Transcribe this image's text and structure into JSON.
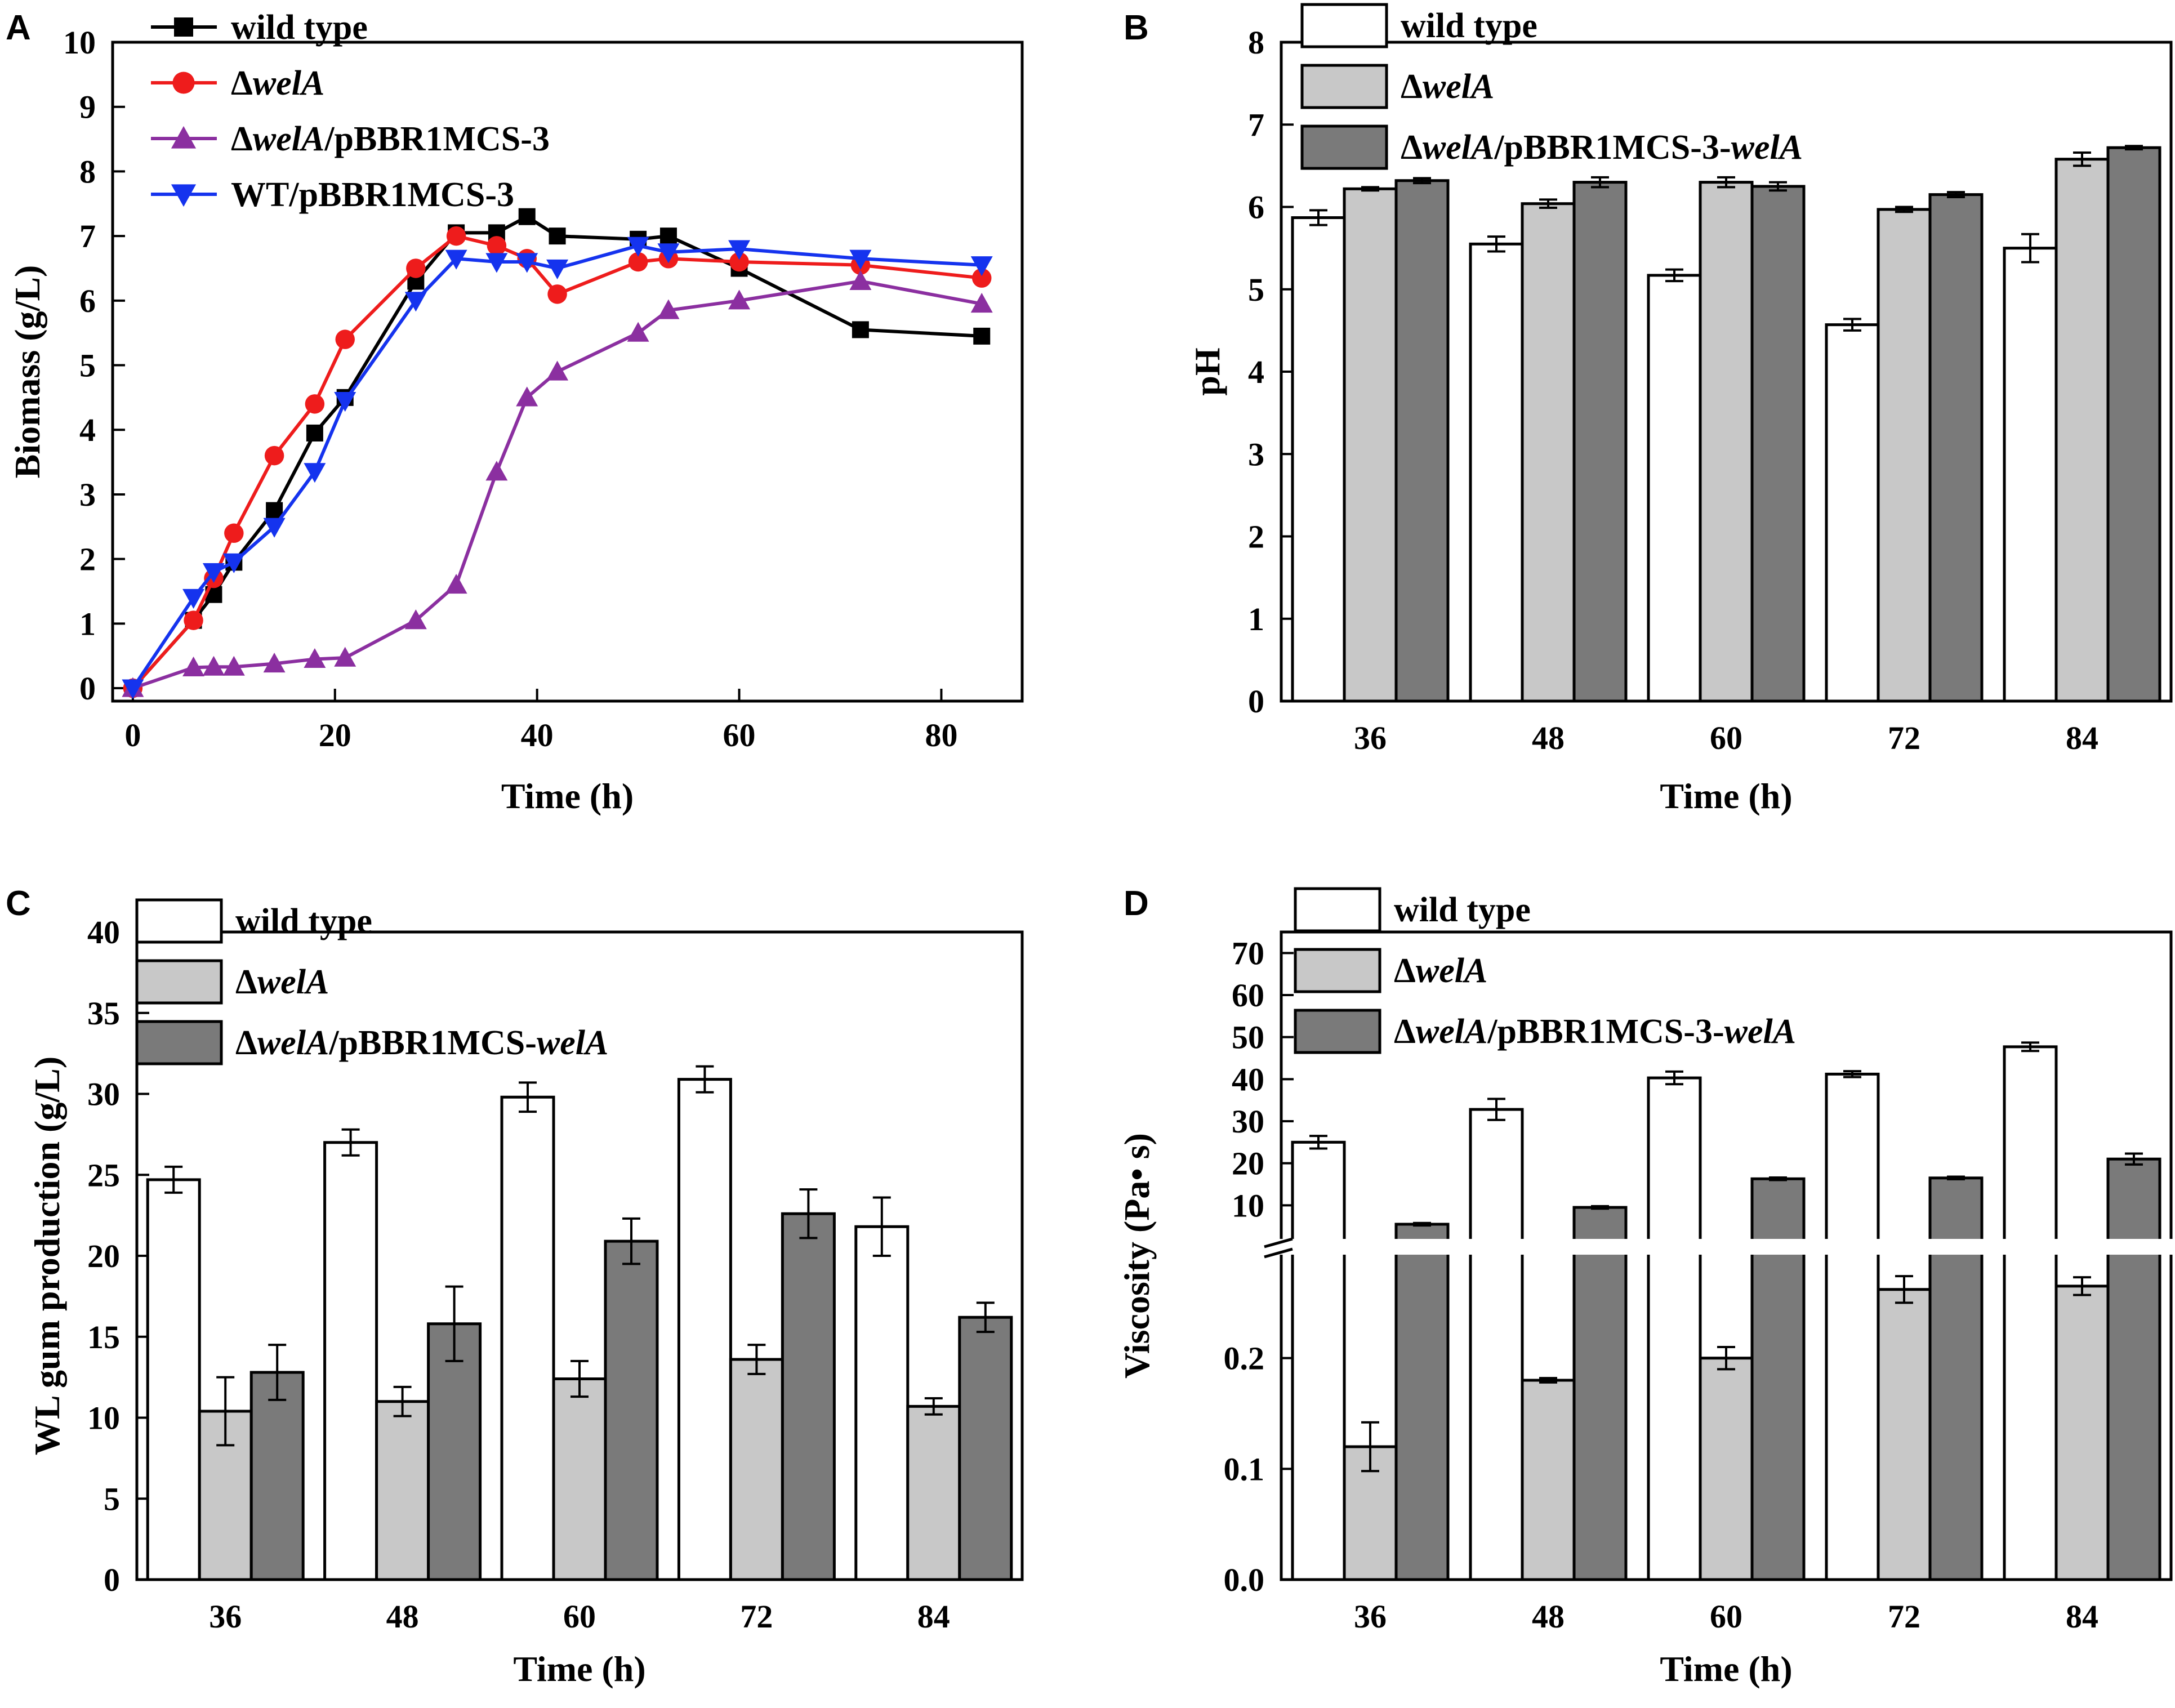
{
  "colors": {
    "wild_type_line": "#000000",
    "delta_line": "#ee1c1c",
    "delta_plasmid_line": "#8b2fa0",
    "wt_plasmid_line": "#1533ee",
    "bar_white": "#ffffff",
    "bar_light": "#c8c8c8",
    "bar_dark": "#7a7a7a"
  },
  "chart_data": [
    {
      "panel": "A",
      "type": "line",
      "xlabel": "Time (h)",
      "ylabel": "Biomass (g/L)",
      "xlim": [
        -2,
        88
      ],
      "ylim": [
        -0.2,
        10
      ],
      "xticks": [
        "0",
        "20",
        "40",
        "60",
        "80"
      ],
      "yticks": [
        "0",
        "1",
        "2",
        "3",
        "4",
        "5",
        "6",
        "7",
        "8",
        "9",
        "10"
      ],
      "legend_position": "top-left",
      "series": [
        {
          "name": "wild type",
          "name_parts": [
            {
              "t": "wild type",
              "i": false
            }
          ],
          "marker": "square",
          "color_key": "wild_type_line",
          "x": [
            0,
            6,
            8,
            10,
            14,
            18,
            21,
            28,
            32,
            36,
            39,
            42,
            50,
            53,
            60,
            72,
            84
          ],
          "y": [
            0,
            1.05,
            1.45,
            1.95,
            2.75,
            3.95,
            4.5,
            6.3,
            7.05,
            7.05,
            7.3,
            7.0,
            6.95,
            7.0,
            6.5,
            5.55,
            5.45
          ]
        },
        {
          "name": "ΔwelA",
          "name_parts": [
            {
              "t": "Δ",
              "i": false
            },
            {
              "t": "welA",
              "i": true
            }
          ],
          "marker": "circle",
          "color_key": "delta_line",
          "x": [
            0,
            6,
            8,
            10,
            14,
            18,
            21,
            28,
            32,
            36,
            39,
            42,
            50,
            53,
            60,
            72,
            84
          ],
          "y": [
            0,
            1.05,
            1.7,
            2.4,
            3.6,
            4.4,
            5.4,
            6.5,
            7.0,
            6.85,
            6.65,
            6.1,
            6.6,
            6.65,
            6.6,
            6.55,
            6.35
          ]
        },
        {
          "name": "ΔwelA/pBBR1MCS-3",
          "name_parts": [
            {
              "t": "Δ",
              "i": false
            },
            {
              "t": "welA",
              "i": true
            },
            {
              "t": "/pBBR1MCS-3",
              "i": false
            }
          ],
          "marker": "triangle-up",
          "color_key": "delta_plasmid_line",
          "x": [
            0,
            6,
            8,
            10,
            14,
            18,
            21,
            28,
            32,
            36,
            39,
            42,
            50,
            53,
            60,
            72,
            84
          ],
          "y": [
            0,
            0.32,
            0.33,
            0.33,
            0.38,
            0.45,
            0.47,
            1.05,
            1.6,
            3.35,
            4.5,
            4.9,
            5.5,
            5.85,
            6.0,
            6.3,
            5.95
          ]
        },
        {
          "name": "WT/pBBR1MCS-3",
          "name_parts": [
            {
              "t": "WT/pBBR1MCS-3",
              "i": false
            }
          ],
          "marker": "triangle-down",
          "color_key": "wt_plasmid_line",
          "x": [
            0,
            6,
            8,
            10,
            14,
            18,
            21,
            28,
            32,
            36,
            39,
            42,
            50,
            53,
            60,
            72,
            84
          ],
          "y": [
            0,
            1.4,
            1.8,
            1.95,
            2.5,
            3.35,
            4.45,
            6.0,
            6.65,
            6.6,
            6.6,
            6.5,
            6.85,
            6.75,
            6.8,
            6.65,
            6.55
          ]
        }
      ]
    },
    {
      "panel": "B",
      "type": "bar",
      "xlabel": "Time (h)",
      "ylabel": "pH",
      "ylim": [
        0,
        8
      ],
      "yticks": [
        "0",
        "1",
        "2",
        "3",
        "4",
        "5",
        "6",
        "7",
        "8"
      ],
      "categories": [
        "36",
        "48",
        "60",
        "72",
        "84"
      ],
      "legend_position": "top",
      "series": [
        {
          "name": "wild type",
          "name_parts": [
            {
              "t": "wild type",
              "i": false
            }
          ],
          "color_key": "bar_white",
          "values": [
            5.87,
            5.55,
            5.17,
            4.57,
            5.5
          ],
          "errors": [
            0.09,
            0.09,
            0.07,
            0.07,
            0.17
          ]
        },
        {
          "name": "ΔwelA",
          "name_parts": [
            {
              "t": "Δ",
              "i": false
            },
            {
              "t": "welA",
              "i": true
            }
          ],
          "color_key": "bar_light",
          "values": [
            6.22,
            6.04,
            6.3,
            5.97,
            6.58
          ],
          "errors": [
            0.02,
            0.05,
            0.06,
            0.03,
            0.08
          ]
        },
        {
          "name": "ΔwelA/pBBR1MCS-3-welA",
          "name_parts": [
            {
              "t": "Δ",
              "i": false
            },
            {
              "t": "welA",
              "i": true
            },
            {
              "t": "/pBBR1MCS-3-",
              "i": false
            },
            {
              "t": "welA",
              "i": true
            }
          ],
          "color_key": "bar_dark",
          "values": [
            6.32,
            6.3,
            6.25,
            6.15,
            6.72
          ],
          "errors": [
            0.03,
            0.06,
            0.05,
            0.03,
            0.02
          ]
        }
      ]
    },
    {
      "panel": "C",
      "type": "bar",
      "xlabel": "Time (h)",
      "ylabel": "WL gum production (g/L)",
      "ylim": [
        0,
        40
      ],
      "yticks": [
        "0",
        "5",
        "10",
        "15",
        "20",
        "25",
        "30",
        "35",
        "40"
      ],
      "categories": [
        "36",
        "48",
        "60",
        "72",
        "84"
      ],
      "legend_position": "top-left",
      "series": [
        {
          "name": "wild type",
          "name_parts": [
            {
              "t": "wild type",
              "i": false
            }
          ],
          "color_key": "bar_white",
          "values": [
            24.7,
            27.0,
            29.8,
            30.9,
            21.8
          ],
          "errors": [
            0.8,
            0.8,
            0.9,
            0.8,
            1.8
          ]
        },
        {
          "name": "ΔwelA",
          "name_parts": [
            {
              "t": "Δ",
              "i": false
            },
            {
              "t": "welA",
              "i": true
            }
          ],
          "color_key": "bar_light",
          "values": [
            10.4,
            11.0,
            12.4,
            13.6,
            10.7
          ],
          "errors": [
            2.1,
            0.9,
            1.1,
            0.9,
            0.5
          ]
        },
        {
          "name": "ΔwelA/pBBR1MCS-welA",
          "name_parts": [
            {
              "t": "Δ",
              "i": false
            },
            {
              "t": "welA",
              "i": true
            },
            {
              "t": "/pBBR1MCS-",
              "i": false
            },
            {
              "t": "welA",
              "i": true
            }
          ],
          "color_key": "bar_dark",
          "values": [
            12.8,
            15.8,
            20.9,
            22.6,
            16.2
          ],
          "errors": [
            1.7,
            2.3,
            1.4,
            1.5,
            0.9
          ]
        }
      ]
    },
    {
      "panel": "D",
      "type": "bar",
      "xlabel": "Time (h)",
      "ylabel": "Viscosity (Pa• s)",
      "axis_break": true,
      "lower_ylim": [
        0,
        0.3
      ],
      "upper_ylim": [
        0,
        75
      ],
      "lower_yticks": [
        "0.0",
        "0.1",
        "0.2"
      ],
      "upper_yticks": [
        "10",
        "20",
        "30",
        "40",
        "50",
        "60",
        "70"
      ],
      "categories": [
        "36",
        "48",
        "60",
        "72",
        "84"
      ],
      "legend_position": "top",
      "series": [
        {
          "name": "wild type",
          "name_parts": [
            {
              "t": "wild type",
              "i": false
            }
          ],
          "color_key": "bar_white",
          "values": [
            25.0,
            32.8,
            40.3,
            41.2,
            47.7
          ],
          "errors": [
            1.5,
            2.5,
            1.5,
            0.7,
            1.0
          ]
        },
        {
          "name": "ΔwelA",
          "name_parts": [
            {
              "t": "Δ",
              "i": false
            },
            {
              "t": "welA",
              "i": true
            }
          ],
          "color_key": "bar_light",
          "values": [
            0.12,
            0.18,
            0.2,
            0.262,
            0.265
          ],
          "errors": [
            0.022,
            0.002,
            0.01,
            0.012,
            0.008
          ]
        },
        {
          "name": "ΔwelA/pBBR1MCS-3-welA",
          "name_parts": [
            {
              "t": "Δ",
              "i": false
            },
            {
              "t": "welA",
              "i": true
            },
            {
              "t": "/pBBR1MCS-3-",
              "i": false
            },
            {
              "t": "welA",
              "i": true
            }
          ],
          "color_key": "bar_dark",
          "values": [
            5.5,
            9.5,
            16.3,
            16.5,
            21.0
          ],
          "errors": [
            0.3,
            0.3,
            0.3,
            0.3,
            1.3
          ]
        }
      ]
    }
  ]
}
